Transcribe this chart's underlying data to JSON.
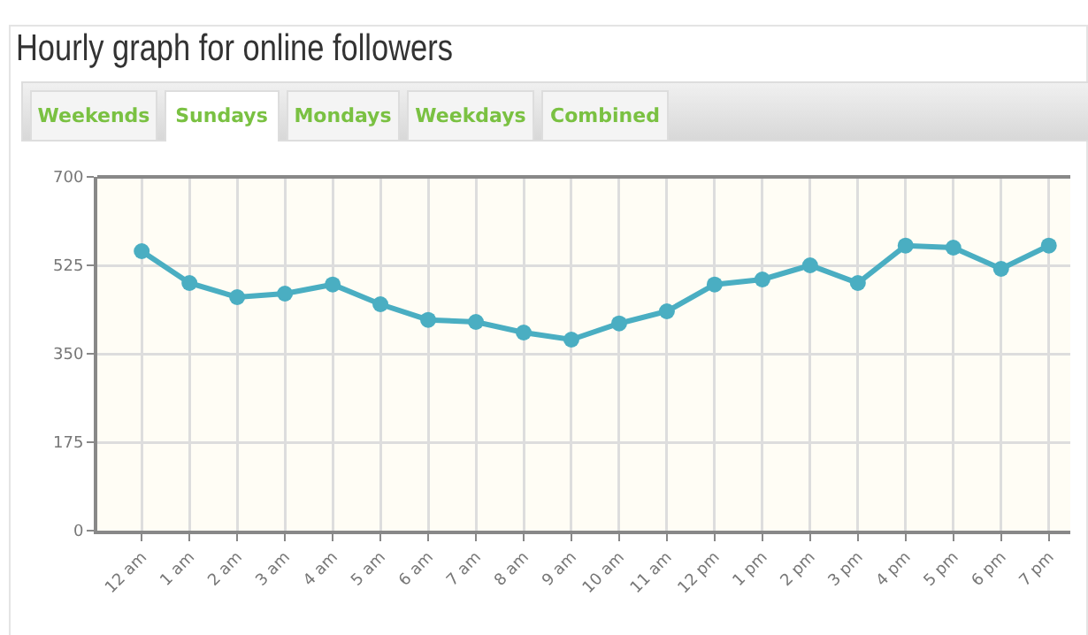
{
  "chart_data": {
    "type": "line",
    "title": "Hourly graph for online followers",
    "annotations": [
      "Weekends",
      "Sundays",
      "Mondays",
      "Weekdays",
      "Combined"
    ],
    "categories": [
      "12 am",
      "1 am",
      "2 am",
      "3 am",
      "4 am",
      "5 am",
      "6 am",
      "7 am",
      "8 am",
      "9 am",
      "10 am",
      "11 am",
      "12 pm",
      "1 pm",
      "2 pm",
      "3 pm",
      "4 pm",
      "5 pm",
      "6 pm",
      "7 pm"
    ],
    "series": [
      {
        "color": "#4aaec2",
        "values": [
          553,
          490,
          462,
          469,
          487,
          448,
          417,
          413,
          392,
          378,
          410,
          434,
          487,
          497,
          525,
          490,
          564,
          560,
          518,
          564
        ]
      }
    ],
    "ylim": [
      0,
      700
    ],
    "yticks": [
      0,
      175,
      350,
      525,
      700
    ],
    "grid": true,
    "marker": "circle",
    "line_style": "solid",
    "legend": false
  }
}
